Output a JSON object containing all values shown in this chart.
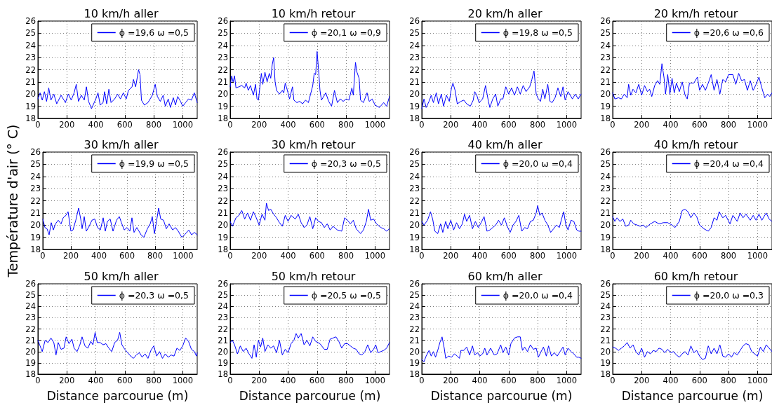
{
  "chart_data": [
    {
      "type": "line",
      "title": "10 km/h aller",
      "xlim": [
        0,
        1100
      ],
      "xticks": [
        0,
        200,
        400,
        600,
        800,
        1000
      ],
      "ylim": [
        18,
        26
      ],
      "yticks": [
        18,
        19,
        20,
        21,
        22,
        23,
        24,
        25,
        26
      ],
      "grid": true,
      "legend": "top right",
      "series": [
        {
          "name": "ϕ =19,6 ω =0,5",
          "color": "#0000ff",
          "x": [
            0,
            15,
            30,
            45,
            60,
            75,
            90,
            110,
            130,
            160,
            190,
            210,
            230,
            250,
            265,
            280,
            300,
            320,
            335,
            350,
            370,
            400,
            415,
            430,
            450,
            460,
            475,
            490,
            505,
            530,
            550,
            570,
            590,
            610,
            625,
            650,
            660,
            675,
            695,
            705,
            715,
            735,
            760,
            790,
            810,
            825,
            845,
            865,
            880,
            900,
            915,
            935,
            950,
            965,
            985,
            1000,
            1020,
            1040,
            1060,
            1080,
            1100
          ],
          "values": [
            19.6,
            20.1,
            19.5,
            20.2,
            19.4,
            20.5,
            19.5,
            20.0,
            19.2,
            19.9,
            19.3,
            20.0,
            19.5,
            20.1,
            20.8,
            19.4,
            19.9,
            19.5,
            20.6,
            19.4,
            18.8,
            19.6,
            20.1,
            19.1,
            19.3,
            20.2,
            19.2,
            20.4,
            19.3,
            19.6,
            20.0,
            19.6,
            20.1,
            19.6,
            20.3,
            20.6,
            21.2,
            20.6,
            22.0,
            21.6,
            19.5,
            19.1,
            19.3,
            19.9,
            20.8,
            19.8,
            19.4,
            19.9,
            19.0,
            19.6,
            18.9,
            19.7,
            19.1,
            19.8,
            19.4,
            19.0,
            19.3,
            19.6,
            19.5,
            20.1,
            19.3
          ]
        }
      ]
    },
    {
      "type": "line",
      "title": "10 km/h retour",
      "xlim": [
        0,
        1100
      ],
      "xticks": [
        0,
        200,
        400,
        600,
        800,
        1000
      ],
      "ylim": [
        18,
        26
      ],
      "yticks": [
        18,
        19,
        20,
        21,
        22,
        23,
        24,
        25,
        26
      ],
      "grid": true,
      "legend": "top right",
      "series": [
        {
          "name": "ϕ =20,1 ω =0,9",
          "color": "#0000ff",
          "x": [
            0,
            10,
            20,
            30,
            40,
            60,
            80,
            100,
            110,
            125,
            140,
            160,
            175,
            185,
            195,
            215,
            225,
            240,
            255,
            270,
            280,
            290,
            300,
            310,
            320,
            340,
            360,
            370,
            380,
            395,
            410,
            430,
            440,
            460,
            480,
            500,
            520,
            540,
            555,
            570,
            580,
            590,
            600,
            610,
            620,
            630,
            640,
            660,
            680,
            700,
            720,
            740,
            760,
            780,
            800,
            820,
            840,
            850,
            865,
            875,
            890,
            900,
            920,
            945,
            960,
            980,
            1000,
            1030,
            1060,
            1080,
            1100
          ],
          "values": [
            20.6,
            21.5,
            21.0,
            21.5,
            20.5,
            20.6,
            20.7,
            20.5,
            20.9,
            20.3,
            20.7,
            19.9,
            20.8,
            19.6,
            19.5,
            21.7,
            20.8,
            21.8,
            21.0,
            21.7,
            21.3,
            22.4,
            23.0,
            21.0,
            20.3,
            20.0,
            20.3,
            20.1,
            20.9,
            20.3,
            19.6,
            20.6,
            19.5,
            19.3,
            19.4,
            19.2,
            19.5,
            19.3,
            20.0,
            20.7,
            21.7,
            21.6,
            23.5,
            22.0,
            20.3,
            19.5,
            19.7,
            20.1,
            19.4,
            19.0,
            20.3,
            19.3,
            19.6,
            19.4,
            19.6,
            19.5,
            20.5,
            19.9,
            22.6,
            21.8,
            21.3,
            19.5,
            19.3,
            20.1,
            19.4,
            19.6,
            19.1,
            18.9,
            19.3,
            19.0,
            19.8
          ]
        }
      ]
    },
    {
      "type": "line",
      "title": "20 km/h aller",
      "xlim": [
        0,
        1100
      ],
      "xticks": [
        0,
        200,
        400,
        600,
        800,
        1000
      ],
      "ylim": [
        18,
        26
      ],
      "yticks": [
        18,
        19,
        20,
        21,
        22,
        23,
        24,
        25,
        26
      ],
      "grid": true,
      "legend": "top right",
      "series": [
        {
          "name": "ϕ =19,8 ω =0,5",
          "color": "#0000ff",
          "x": [
            0,
            15,
            30,
            50,
            65,
            80,
            100,
            115,
            135,
            150,
            170,
            190,
            205,
            215,
            230,
            245,
            270,
            290,
            310,
            335,
            355,
            365,
            380,
            395,
            420,
            440,
            460,
            470,
            490,
            510,
            525,
            545,
            560,
            580,
            600,
            620,
            640,
            660,
            680,
            700,
            720,
            745,
            760,
            775,
            790,
            805,
            820,
            835,
            850,
            870,
            885,
            900,
            920,
            940,
            960,
            975,
            990,
            1010,
            1040,
            1060,
            1080,
            1100
          ],
          "values": [
            18.8,
            19.6,
            18.9,
            19.4,
            19.9,
            19.3,
            20.1,
            19.2,
            20.0,
            19.0,
            19.9,
            19.4,
            20.5,
            20.9,
            20.3,
            19.2,
            19.4,
            19.5,
            19.2,
            19.0,
            19.5,
            20.2,
            19.9,
            19.3,
            19.6,
            20.7,
            19.4,
            18.9,
            19.6,
            20.0,
            19.0,
            19.6,
            19.6,
            20.6,
            20.0,
            20.5,
            19.9,
            20.6,
            20.0,
            20.7,
            20.2,
            20.6,
            21.2,
            21.9,
            20.0,
            19.6,
            19.4,
            20.4,
            19.6,
            20.8,
            19.4,
            19.3,
            19.7,
            20.5,
            19.8,
            20.6,
            19.5,
            20.2,
            19.6,
            20.0,
            19.6,
            20.0
          ]
        }
      ]
    },
    {
      "type": "line",
      "title": "20 km/h retour",
      "xlim": [
        0,
        1100
      ],
      "xticks": [
        0,
        200,
        400,
        600,
        800,
        1000
      ],
      "ylim": [
        18,
        26
      ],
      "yticks": [
        18,
        19,
        20,
        21,
        22,
        23,
        24,
        25,
        26
      ],
      "grid": true,
      "legend": "top right",
      "series": [
        {
          "name": "ϕ =20,6 ω =0,6",
          "color": "#0000ff",
          "x": [
            0,
            15,
            40,
            60,
            80,
            100,
            110,
            125,
            140,
            160,
            180,
            200,
            220,
            240,
            255,
            270,
            290,
            310,
            325,
            340,
            355,
            365,
            380,
            395,
            410,
            425,
            440,
            460,
            480,
            500,
            515,
            530,
            560,
            585,
            600,
            620,
            640,
            660,
            680,
            700,
            720,
            740,
            760,
            780,
            800,
            830,
            850,
            870,
            890,
            910,
            930,
            950,
            970,
            990,
            1010,
            1030,
            1050,
            1070,
            1085,
            1100
          ],
          "values": [
            20.1,
            19.6,
            19.7,
            19.6,
            20.0,
            19.7,
            20.8,
            19.9,
            20.4,
            20.1,
            20.8,
            19.9,
            20.7,
            20.2,
            20.4,
            19.8,
            20.7,
            21.1,
            20.8,
            22.5,
            21.3,
            20.0,
            21.6,
            20.0,
            21.3,
            20.1,
            20.9,
            20.2,
            21.0,
            19.9,
            19.6,
            20.9,
            20.9,
            21.4,
            20.3,
            20.8,
            20.3,
            20.9,
            21.6,
            20.3,
            21.2,
            20.0,
            21.2,
            21.0,
            21.6,
            21.6,
            20.8,
            21.7,
            21.1,
            21.2,
            20.3,
            21.1,
            20.3,
            20.8,
            21.4,
            20.5,
            19.7,
            20.0,
            19.8,
            20.1
          ]
        }
      ]
    },
    {
      "type": "line",
      "title": "30 km/h aller",
      "ylabel": "Température d'air (° C)",
      "xlim": [
        0,
        1100
      ],
      "xticks": [
        0,
        200,
        400,
        600,
        800,
        1000
      ],
      "ylim": [
        18,
        26
      ],
      "yticks": [
        18,
        19,
        20,
        21,
        22,
        23,
        24,
        25,
        26
      ],
      "grid": true,
      "legend": "top right",
      "series": [
        {
          "name": "ϕ =19,9 ω =0,5",
          "color": "#0000ff",
          "x": [
            0,
            15,
            30,
            45,
            60,
            75,
            90,
            110,
            130,
            145,
            165,
            180,
            200,
            215,
            235,
            255,
            270,
            280,
            295,
            310,
            330,
            350,
            370,
            390,
            410,
            430,
            445,
            460,
            480,
            500,
            525,
            545,
            560,
            580,
            600,
            620,
            635,
            650,
            670,
            700,
            720,
            745,
            765,
            780,
            795,
            810,
            825,
            840,
            860,
            880,
            900,
            925,
            945,
            965,
            990,
            1010,
            1040,
            1060,
            1080,
            1100
          ],
          "values": [
            20.5,
            19.8,
            19.7,
            19.2,
            20.2,
            19.6,
            20.1,
            20.4,
            20.1,
            20.6,
            20.8,
            21.1,
            19.5,
            19.6,
            20.4,
            21.4,
            20.5,
            19.7,
            20.7,
            19.5,
            19.9,
            20.4,
            20.5,
            19.8,
            19.6,
            20.6,
            19.5,
            20.3,
            20.5,
            19.5,
            20.4,
            20.7,
            20.2,
            19.6,
            19.8,
            19.5,
            20.6,
            19.4,
            19.8,
            19.2,
            19.0,
            19.7,
            20.1,
            20.7,
            19.3,
            20.3,
            21.4,
            20.5,
            20.4,
            19.7,
            20.1,
            19.6,
            19.8,
            19.5,
            19.0,
            19.2,
            19.6,
            19.2,
            19.4,
            19.2
          ]
        }
      ]
    },
    {
      "type": "line",
      "title": "30 km/h retour",
      "xlim": [
        0,
        1100
      ],
      "xticks": [
        0,
        200,
        400,
        600,
        800,
        1000
      ],
      "ylim": [
        18,
        26
      ],
      "yticks": [
        18,
        19,
        20,
        21,
        22,
        23,
        24,
        25,
        26
      ],
      "grid": true,
      "legend": "top right",
      "series": [
        {
          "name": "ϕ =20,3 ω =0,5",
          "color": "#0000ff",
          "x": [
            0,
            15,
            40,
            60,
            80,
            100,
            120,
            140,
            160,
            180,
            200,
            220,
            240,
            250,
            265,
            280,
            300,
            320,
            340,
            360,
            380,
            400,
            420,
            450,
            470,
            490,
            510,
            530,
            550,
            570,
            590,
            610,
            630,
            650,
            670,
            690,
            710,
            740,
            770,
            790,
            810,
            830,
            850,
            870,
            900,
            920,
            940,
            955,
            970,
            990,
            1010,
            1040,
            1060,
            1080,
            1100
          ],
          "values": [
            20.3,
            19.9,
            20.6,
            20.8,
            21.2,
            20.5,
            21.0,
            20.4,
            21.1,
            20.6,
            20.0,
            20.9,
            20.4,
            21.8,
            21.2,
            21.3,
            20.9,
            20.6,
            20.2,
            19.9,
            20.8,
            20.3,
            20.8,
            20.5,
            20.9,
            20.2,
            19.8,
            20.0,
            20.7,
            19.7,
            20.6,
            20.3,
            20.2,
            19.8,
            20.1,
            19.6,
            19.9,
            19.6,
            19.5,
            20.6,
            20.4,
            20.1,
            20.4,
            19.7,
            19.3,
            19.6,
            20.3,
            21.3,
            20.4,
            20.5,
            20.1,
            19.8,
            19.7,
            19.5,
            19.7
          ]
        }
      ]
    },
    {
      "type": "line",
      "title": "40 km/h aller",
      "xlim": [
        0,
        1100
      ],
      "xticks": [
        0,
        200,
        400,
        600,
        800,
        1000
      ],
      "ylim": [
        18,
        26
      ],
      "yticks": [
        18,
        19,
        20,
        21,
        22,
        23,
        24,
        25,
        26
      ],
      "grid": true,
      "legend": "top right",
      "series": [
        {
          "name": "ϕ =20,0 ω =0,4",
          "color": "#0000ff",
          "x": [
            0,
            15,
            40,
            60,
            75,
            90,
            110,
            130,
            145,
            165,
            180,
            200,
            220,
            240,
            260,
            280,
            295,
            310,
            330,
            350,
            370,
            390,
            410,
            430,
            450,
            470,
            490,
            510,
            530,
            550,
            570,
            590,
            610,
            630,
            650,
            670,
            690,
            710,
            730,
            750,
            770,
            790,
            800,
            815,
            830,
            850,
            870,
            890,
            910,
            930,
            950,
            965,
            980,
            995,
            1010,
            1030,
            1050,
            1070,
            1085,
            1100
          ],
          "values": [
            20.3,
            20.0,
            20.4,
            21.1,
            20.5,
            19.5,
            19.3,
            20.1,
            19.4,
            20.3,
            19.7,
            20.4,
            19.6,
            20.2,
            19.7,
            20.1,
            20.9,
            20.3,
            20.8,
            19.7,
            20.3,
            19.8,
            20.2,
            20.7,
            19.5,
            19.6,
            19.8,
            20.0,
            20.4,
            20.0,
            20.6,
            19.9,
            19.4,
            20.0,
            20.3,
            20.8,
            19.5,
            19.8,
            19.7,
            20.3,
            20.4,
            21.0,
            21.6,
            20.8,
            21.0,
            20.4,
            20.0,
            19.4,
            19.7,
            20.0,
            19.8,
            20.5,
            21.1,
            20.0,
            19.6,
            20.4,
            20.3,
            19.6,
            19.5,
            19.5
          ]
        }
      ]
    },
    {
      "type": "line",
      "title": "40 km/h retour",
      "xlim": [
        0,
        1100
      ],
      "xticks": [
        0,
        200,
        400,
        600,
        800,
        1000
      ],
      "ylim": [
        18,
        26
      ],
      "yticks": [
        18,
        19,
        20,
        21,
        22,
        23,
        24,
        25,
        26
      ],
      "grid": true,
      "legend": "top right",
      "series": [
        {
          "name": "ϕ =20,4 ω =0,4",
          "color": "#0000ff",
          "x": [
            0,
            15,
            30,
            50,
            70,
            90,
            110,
            125,
            145,
            170,
            190,
            210,
            230,
            260,
            290,
            320,
            350,
            380,
            410,
            430,
            460,
            480,
            500,
            520,
            540,
            560,
            580,
            600,
            630,
            660,
            680,
            700,
            720,
            735,
            760,
            780,
            810,
            830,
            860,
            880,
            900,
            920,
            950,
            970,
            990,
            1010,
            1030,
            1060,
            1080,
            1100
          ],
          "values": [
            20.7,
            20.3,
            20.6,
            20.3,
            20.5,
            19.9,
            20.0,
            20.4,
            20.1,
            20.0,
            19.9,
            20.0,
            19.8,
            20.1,
            20.3,
            20.1,
            20.2,
            20.2,
            20.0,
            19.8,
            20.3,
            21.2,
            21.3,
            21.1,
            20.6,
            21.0,
            20.7,
            20.0,
            19.7,
            19.5,
            19.8,
            20.6,
            20.4,
            21.1,
            20.6,
            20.8,
            20.1,
            20.8,
            20.3,
            21.0,
            20.6,
            20.9,
            20.4,
            20.8,
            20.4,
            20.9,
            20.4,
            21.0,
            20.5,
            20.3
          ]
        }
      ]
    },
    {
      "type": "line",
      "title": "50 km/h aller",
      "xlabel": "Distance parcourue (m)",
      "xlim": [
        0,
        1100
      ],
      "xticks": [
        0,
        200,
        400,
        600,
        800,
        1000
      ],
      "ylim": [
        18,
        26
      ],
      "yticks": [
        18,
        19,
        20,
        21,
        22,
        23,
        24,
        25,
        26
      ],
      "grid": true,
      "legend": "top right",
      "series": [
        {
          "name": "ϕ =20,3 ω =0,5",
          "color": "#0000ff",
          "x": [
            0,
            15,
            30,
            50,
            70,
            90,
            110,
            125,
            140,
            160,
            180,
            195,
            215,
            235,
            250,
            270,
            290,
            305,
            325,
            345,
            365,
            380,
            395,
            410,
            430,
            450,
            470,
            490,
            510,
            530,
            550,
            565,
            580,
            600,
            620,
            640,
            660,
            680,
            700,
            720,
            740,
            760,
            780,
            800,
            820,
            840,
            860,
            880,
            900,
            920,
            940,
            960,
            980,
            1000,
            1020,
            1040,
            1060,
            1080,
            1095,
            1100
          ],
          "values": [
            21.0,
            20.5,
            20.0,
            21.0,
            20.8,
            21.2,
            20.8,
            19.7,
            20.8,
            20.2,
            20.3,
            21.3,
            20.7,
            21.1,
            20.3,
            20.0,
            20.6,
            21.3,
            20.5,
            20.3,
            20.9,
            20.6,
            21.7,
            20.8,
            20.8,
            20.6,
            20.7,
            20.3,
            20.0,
            20.8,
            21.0,
            21.7,
            20.6,
            20.2,
            19.9,
            19.6,
            19.4,
            19.7,
            19.9,
            19.5,
            19.8,
            19.4,
            20.1,
            20.5,
            19.6,
            20.0,
            19.4,
            19.8,
            19.5,
            19.7,
            19.6,
            20.3,
            20.1,
            20.5,
            21.2,
            20.9,
            20.2,
            20.0,
            19.6,
            19.9
          ]
        }
      ]
    },
    {
      "type": "line",
      "title": "50 km/h retour",
      "xlabel": "Distance parcourue (m)",
      "xlim": [
        0,
        1100
      ],
      "xticks": [
        0,
        200,
        400,
        600,
        800,
        1000
      ],
      "ylim": [
        18,
        26
      ],
      "yticks": [
        18,
        19,
        20,
        21,
        22,
        23,
        24,
        25,
        26
      ],
      "grid": true,
      "legend": "top right",
      "series": [
        {
          "name": "ϕ =20,5 ω =0,5",
          "color": "#0000ff",
          "x": [
            0,
            15,
            30,
            50,
            70,
            90,
            110,
            130,
            150,
            165,
            180,
            195,
            210,
            225,
            240,
            260,
            280,
            300,
            320,
            340,
            360,
            380,
            400,
            420,
            440,
            455,
            470,
            490,
            510,
            530,
            550,
            570,
            590,
            620,
            650,
            670,
            690,
            710,
            730,
            750,
            770,
            790,
            810,
            830,
            850,
            870,
            890,
            910,
            930,
            950,
            970,
            990,
            1005,
            1020,
            1040,
            1060,
            1080,
            1100
          ],
          "values": [
            20.8,
            21.0,
            20.6,
            19.8,
            20.5,
            20.0,
            20.3,
            19.8,
            19.4,
            20.6,
            19.5,
            21.0,
            20.4,
            21.2,
            20.0,
            20.6,
            20.3,
            20.5,
            19.9,
            21.0,
            19.7,
            20.2,
            19.9,
            20.7,
            21.0,
            21.6,
            21.2,
            21.6,
            20.6,
            21.0,
            20.5,
            21.3,
            20.9,
            20.7,
            20.2,
            20.2,
            21.1,
            21.2,
            21.3,
            20.9,
            20.3,
            20.7,
            20.7,
            20.5,
            20.3,
            20.2,
            19.8,
            19.7,
            20.0,
            20.6,
            19.9,
            20.2,
            20.6,
            19.9,
            20.0,
            20.1,
            20.3,
            20.8
          ]
        }
      ]
    },
    {
      "type": "line",
      "title": "60 km/h aller",
      "xlabel": "Distance parcourue (m)",
      "xlim": [
        0,
        1100
      ],
      "xticks": [
        0,
        200,
        400,
        600,
        800,
        1000
      ],
      "ylim": [
        18,
        26
      ],
      "yticks": [
        18,
        19,
        20,
        21,
        22,
        23,
        24,
        25,
        26
      ],
      "grid": true,
      "legend": "top right",
      "series": [
        {
          "name": "ϕ =20,0 ω =0,4",
          "color": "#0000ff",
          "x": [
            0,
            15,
            30,
            50,
            65,
            80,
            95,
            110,
            125,
            140,
            155,
            165,
            185,
            205,
            225,
            245,
            260,
            270,
            290,
            310,
            330,
            350,
            365,
            385,
            400,
            420,
            435,
            450,
            475,
            500,
            520,
            545,
            560,
            580,
            600,
            615,
            640,
            660,
            680,
            695,
            710,
            730,
            750,
            770,
            790,
            805,
            820,
            840,
            860,
            875,
            895,
            915,
            935,
            955,
            975,
            990,
            1010,
            1030,
            1050,
            1070,
            1085,
            1100
          ],
          "values": [
            19.3,
            19.1,
            19.6,
            20.1,
            19.6,
            20.0,
            19.5,
            20.1,
            20.8,
            21.3,
            20.3,
            19.4,
            19.6,
            19.5,
            19.8,
            19.6,
            19.4,
            20.1,
            20.1,
            20.4,
            19.7,
            20.5,
            19.7,
            19.9,
            19.6,
            19.8,
            20.3,
            19.7,
            20.3,
            19.7,
            19.8,
            20.6,
            19.9,
            20.4,
            19.7,
            20.7,
            21.2,
            21.3,
            21.3,
            20.1,
            20.4,
            20.0,
            20.6,
            20.2,
            20.3,
            19.5,
            19.9,
            20.4,
            19.6,
            20.5,
            19.6,
            19.9,
            19.6,
            20.0,
            20.4,
            19.7,
            20.3,
            20.0,
            19.8,
            19.5,
            19.5,
            19.4
          ]
        }
      ]
    },
    {
      "type": "line",
      "title": "60 km/h retour",
      "xlabel": "Distance parcourue (m)",
      "xlim": [
        0,
        1100
      ],
      "xticks": [
        0,
        200,
        400,
        600,
        800,
        1000
      ],
      "ylim": [
        18,
        26
      ],
      "yticks": [
        18,
        19,
        20,
        21,
        22,
        23,
        24,
        25,
        26
      ],
      "grid": true,
      "legend": "top right",
      "series": [
        {
          "name": "ϕ =20,0 ω =0,3",
          "color": "#0000ff",
          "x": [
            0,
            20,
            40,
            60,
            80,
            100,
            120,
            140,
            160,
            180,
            200,
            220,
            240,
            260,
            280,
            300,
            320,
            340,
            360,
            380,
            400,
            420,
            440,
            460,
            480,
            500,
            520,
            540,
            560,
            580,
            600,
            620,
            640,
            660,
            680,
            700,
            720,
            740,
            760,
            780,
            800,
            820,
            840,
            860,
            880,
            900,
            920,
            940,
            960,
            980,
            1000,
            1020,
            1040,
            1060,
            1080,
            1100
          ],
          "values": [
            20.4,
            20.3,
            20.1,
            20.3,
            20.5,
            20.8,
            20.3,
            20.6,
            20.0,
            19.7,
            20.3,
            19.5,
            20.0,
            19.8,
            20.1,
            20.0,
            20.3,
            20.2,
            19.9,
            20.2,
            19.9,
            20.0,
            19.7,
            19.5,
            19.8,
            20.0,
            19.7,
            20.5,
            19.9,
            20.1,
            19.6,
            19.3,
            19.4,
            20.5,
            19.8,
            20.3,
            19.8,
            20.6,
            19.6,
            19.5,
            19.8,
            19.5,
            19.9,
            19.7,
            20.1,
            20.5,
            20.7,
            20.6,
            20.0,
            19.8,
            19.6,
            20.4,
            20.0,
            20.6,
            20.3,
            20.0
          ]
        }
      ]
    }
  ]
}
